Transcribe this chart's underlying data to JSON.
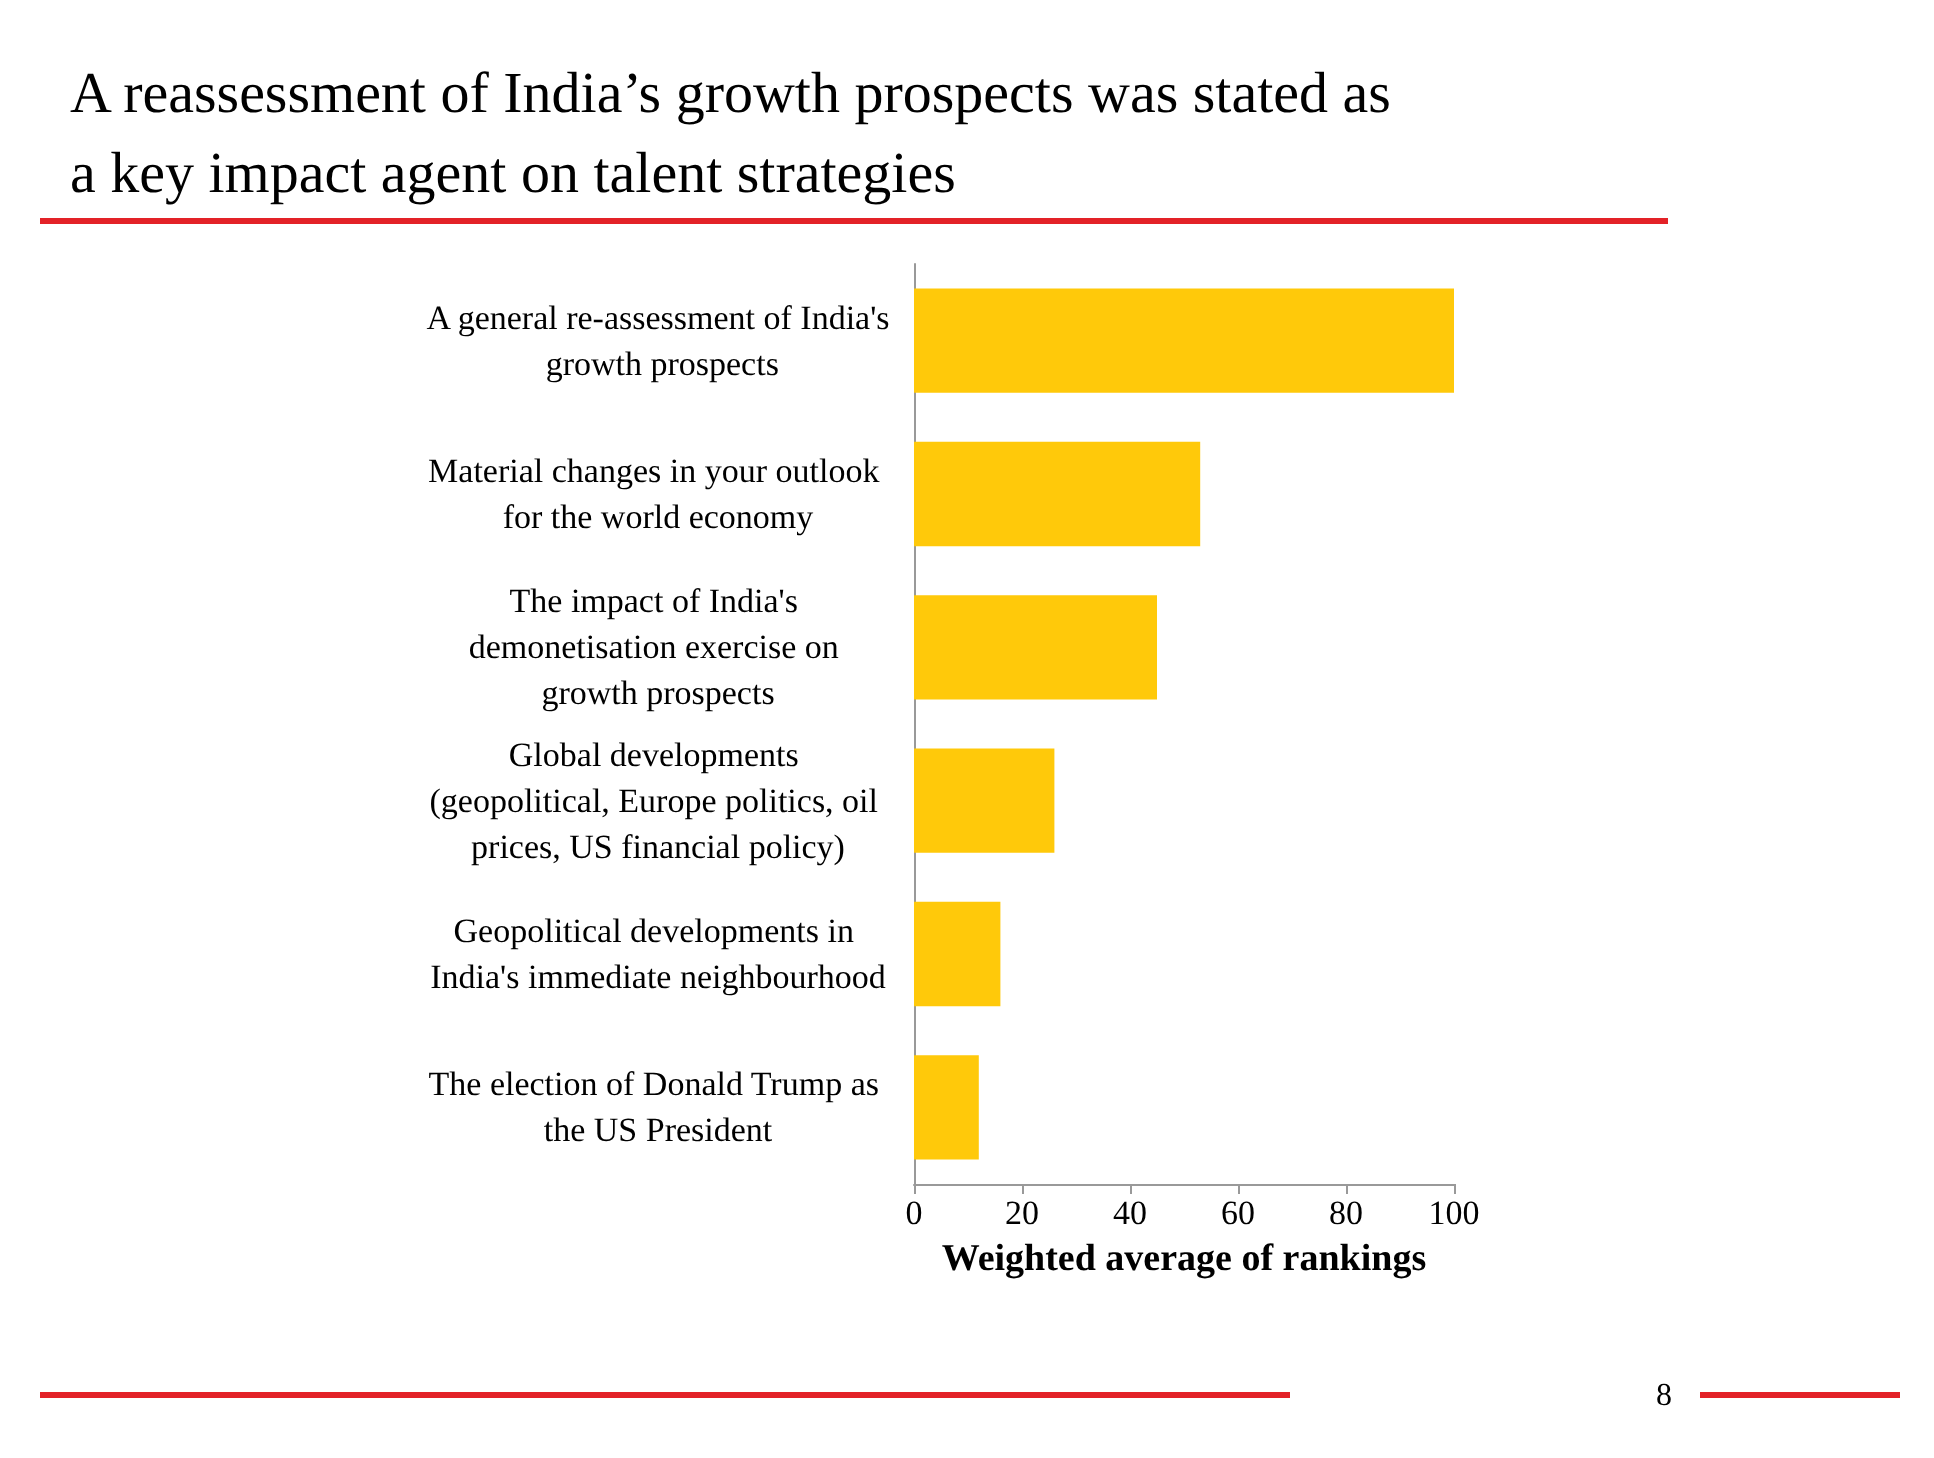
{
  "chart_data": {
    "type": "bar",
    "orientation": "horizontal",
    "title": "A reassessment of India’s growth prospects was stated as a key impact agent on talent strategies",
    "categories": [
      "A general re-assessment of India's growth prospects",
      "Material changes in your outlook for the world economy",
      "The impact of India's demonetisation exercise on growth prospects",
      "Global developments (geopolitical, Europe politics, oil prices, US financial policy)",
      "Geopolitical developments in India's immediate neighbourhood",
      "The election of Donald Trump as the US President"
    ],
    "values": [
      100,
      53,
      45,
      26,
      16,
      12
    ],
    "color": "#ffc90a",
    "xlabel": "Weighted average of rankings",
    "xlim": [
      0,
      100
    ],
    "xticks": [
      0,
      20,
      40,
      60,
      80,
      100
    ],
    "grid": false,
    "annotations": [
      "8"
    ]
  }
}
